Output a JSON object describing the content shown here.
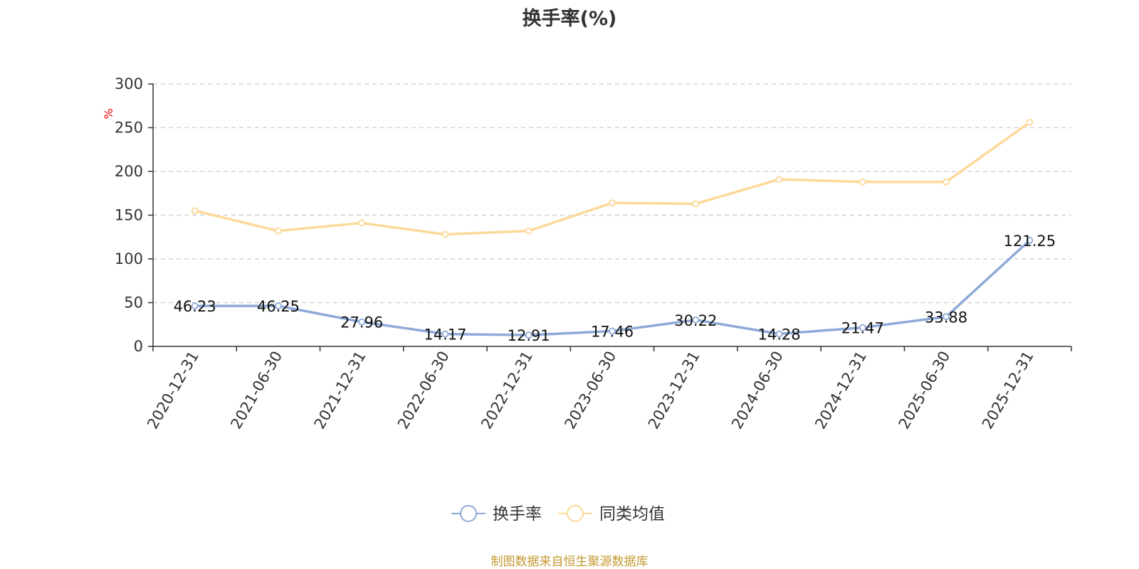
{
  "chart_data": {
    "type": "line",
    "title": "换手率(%)",
    "ylabel": "%",
    "xlabel": "",
    "ylim": [
      0,
      300
    ],
    "yticks": [
      0,
      50,
      100,
      150,
      200,
      250,
      300
    ],
    "grid": true,
    "legend_position": "bottom-center",
    "categories": [
      "2020-12-31",
      "2021-06-30",
      "2021-12-31",
      "2022-06-30",
      "2022-12-31",
      "2023-06-30",
      "2023-12-31",
      "2024-06-30",
      "2024-12-31",
      "2025-06-30",
      "2025-12-31"
    ],
    "series": [
      {
        "name": "换手率",
        "color": "#8eaad8",
        "values": [
          46.23,
          46.25,
          27.96,
          14.17,
          12.91,
          17.46,
          30.22,
          14.28,
          21.47,
          33.88,
          121.25
        ],
        "labels": [
          "46.23",
          "46.25",
          "27.96",
          "14.17",
          "12.91",
          "17.46",
          "30.22",
          "14.28",
          "21.47",
          "33.88",
          "121.25"
        ]
      },
      {
        "name": "同类均值",
        "color": "#fcd997",
        "values": [
          155,
          132,
          141,
          128,
          132,
          164,
          163,
          191,
          188,
          188,
          256
        ]
      }
    ]
  },
  "footer": {
    "source": "制图数据来自恒生聚源数据库"
  }
}
